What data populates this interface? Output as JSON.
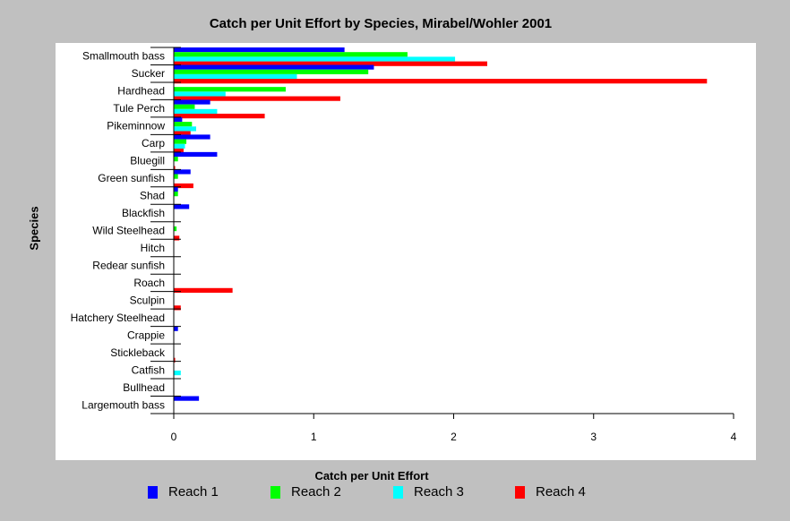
{
  "chart_data": {
    "type": "bar",
    "orientation": "horizontal",
    "title": "Catch per Unit Effort by Species, Mirabel/Wohler 2001",
    "xlabel": "Catch per Unit Effort",
    "ylabel": "Species",
    "xlim": [
      0,
      4
    ],
    "xticks": [
      "0",
      "1",
      "2",
      "3",
      "4"
    ],
    "grid": false,
    "legend": "bottom",
    "categories": [
      "Smallmouth bass",
      "Sucker",
      "Hardhead",
      "Tule Perch",
      "Pikeminnow",
      "Carp",
      "Bluegill",
      "Green sunfish",
      "Shad",
      "Blackfish",
      "Wild Steelhead",
      "Hitch",
      "Redear sunfish",
      "Roach",
      "Sculpin",
      "Hatchery Steelhead",
      "Crappie",
      "Stickleback",
      "Catfish",
      "Bullhead",
      "Largemouth bass"
    ],
    "series": [
      {
        "name": "Reach 1",
        "color": "#0000ff",
        "values": [
          1.22,
          1.43,
          0.0,
          0.26,
          0.06,
          0.26,
          0.31,
          0.12,
          0.03,
          0.11,
          0.0,
          0.0,
          0.0,
          0.0,
          0.0,
          0.0,
          0.03,
          0.0,
          0.0,
          0.0,
          0.18
        ]
      },
      {
        "name": "Reach 2",
        "color": "#00ff00",
        "values": [
          1.67,
          1.39,
          0.8,
          0.15,
          0.13,
          0.09,
          0.03,
          0.03,
          0.03,
          0.0,
          0.02,
          0.0,
          0.0,
          0.0,
          0.0,
          0.0,
          0.0,
          0.0,
          0.0,
          0.0,
          0.0
        ]
      },
      {
        "name": "Reach 3",
        "color": "#00ffff",
        "values": [
          2.01,
          0.88,
          0.37,
          0.31,
          0.16,
          0.08,
          0.0,
          0.0,
          0.0,
          0.0,
          0.0,
          0.0,
          0.0,
          0.0,
          0.0,
          0.0,
          0.0,
          0.0,
          0.05,
          0.0,
          0.0
        ]
      },
      {
        "name": "Reach 4",
        "color": "#ff0000",
        "values": [
          2.24,
          3.81,
          1.19,
          0.65,
          0.12,
          0.07,
          0.01,
          0.14,
          0.0,
          0.0,
          0.04,
          0.0,
          0.0,
          0.42,
          0.05,
          0.0,
          0.0,
          0.01,
          0.0,
          0.0,
          0.0
        ]
      }
    ]
  }
}
